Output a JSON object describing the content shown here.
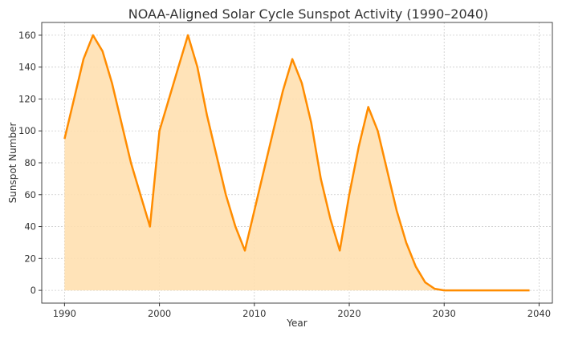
{
  "chart_data": {
    "type": "area",
    "title": "NOAA-Aligned Solar Cycle Sunspot Activity (1990–2040)",
    "xlabel": "Year",
    "ylabel": "Sunspot Number",
    "xlim": [
      1987.6,
      2041.4
    ],
    "ylim": [
      -8,
      168
    ],
    "xticks": [
      1990,
      2000,
      2010,
      2020,
      2030,
      2040
    ],
    "yticks": [
      0,
      20,
      40,
      60,
      80,
      100,
      120,
      140,
      160
    ],
    "grid": true,
    "line_color": "#ff8c00",
    "fill_color": "#ffe0b0",
    "x": [
      1990,
      1991,
      1992,
      1993,
      1994,
      1995,
      1996,
      1997,
      1998,
      1999,
      2000,
      2001,
      2002,
      2003,
      2004,
      2005,
      2006,
      2007,
      2008,
      2009,
      2010,
      2011,
      2012,
      2013,
      2014,
      2015,
      2016,
      2017,
      2018,
      2019,
      2020,
      2021,
      2022,
      2023,
      2024,
      2025,
      2026,
      2027,
      2028,
      2029,
      2030,
      2031,
      2032,
      2033,
      2034,
      2035,
      2036,
      2037,
      2038,
      2039
    ],
    "values": [
      95,
      120,
      145,
      160,
      150,
      130,
      105,
      80,
      60,
      40,
      100,
      120,
      140,
      160,
      140,
      110,
      85,
      60,
      40,
      25,
      50,
      75,
      100,
      125,
      145,
      130,
      105,
      70,
      45,
      25,
      60,
      90,
      115,
      100,
      75,
      50,
      30,
      15,
      5,
      1,
      0,
      0,
      0,
      0,
      0,
      0,
      0,
      0,
      0,
      0
    ]
  }
}
